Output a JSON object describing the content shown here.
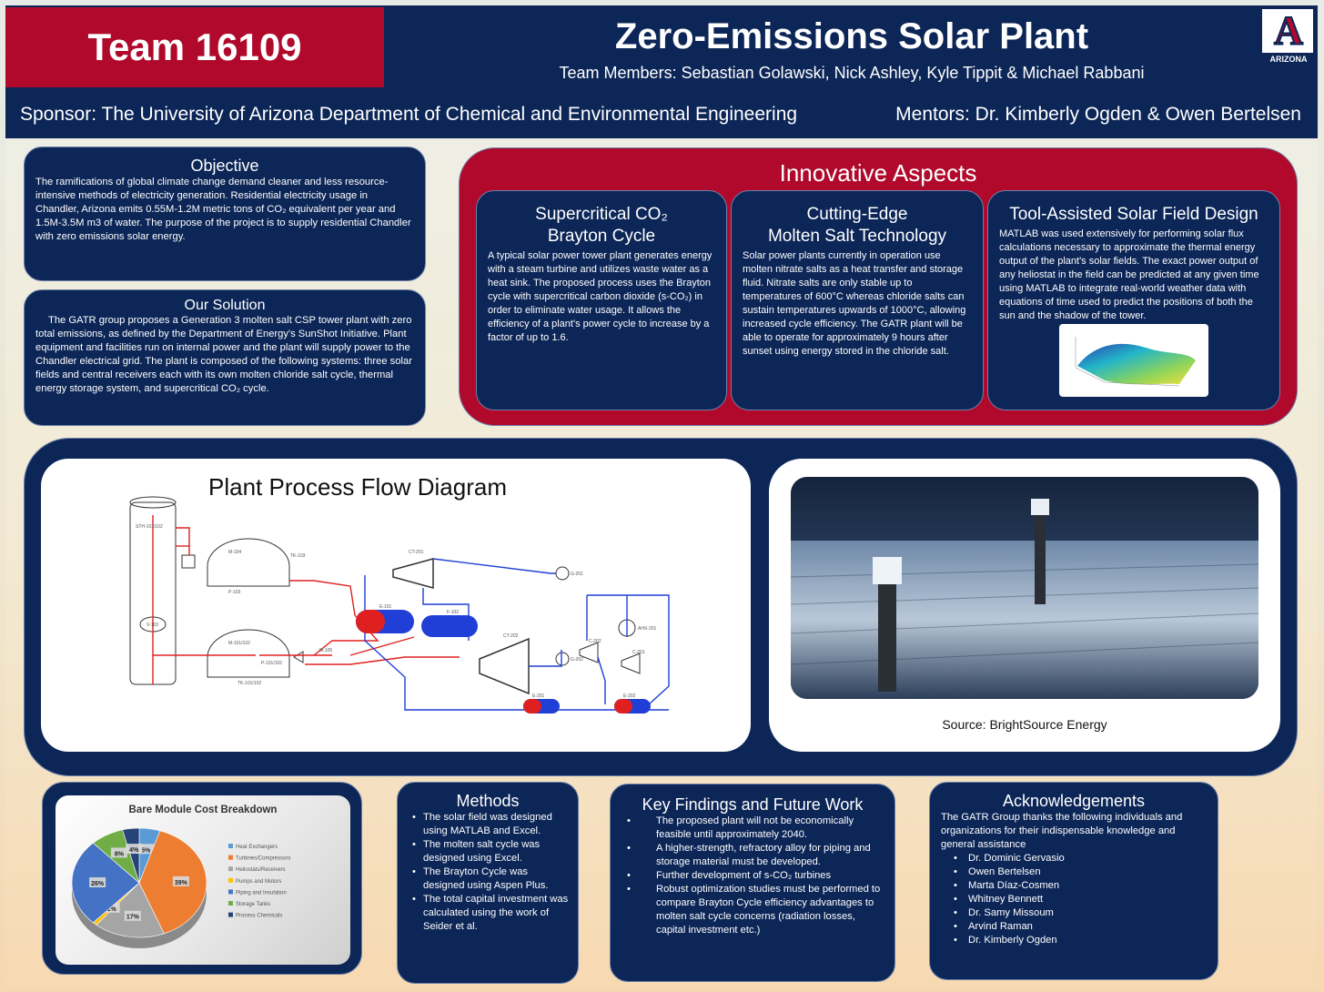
{
  "header": {
    "team": "Team 16109",
    "title": "Zero-Emissions Solar Plant",
    "members": "Team Members: Sebastian Golawski, Nick Ashley, Kyle Tippit & Michael Rabbani",
    "sponsor": "Sponsor: The University of Arizona Department of Chemical and Environmental Engineering",
    "mentors": "Mentors: Dr. Kimberly Ogden & Owen Bertelsen",
    "logo_text": "ARIZONA",
    "logo_letter": "A"
  },
  "objective": {
    "title": "Objective",
    "body": "The ramifications of global climate change demand cleaner and less resource-intensive methods of electricity generation. Residential electricity usage in Chandler, Arizona emits 0.55M-1.2M metric tons of CO₂ equivalent per year and 1.5M-3.5M m3 of water. The purpose of the project is to supply residential Chandler with zero emissions solar energy."
  },
  "solution": {
    "title": "Our Solution",
    "body": "The GATR group proposes a Generation 3 molten salt CSP tower plant with zero total emissions, as defined by the Department of Energy's SunShot Initiative. Plant equipment and facilities run on internal power and the plant will supply power to the Chandler electrical grid. The plant is composed of the following systems: three solar fields and central receivers each with its own molten chloride salt cycle, thermal energy storage system, and supercritical CO₂ cycle."
  },
  "innovative": {
    "title": "Innovative Aspects",
    "a1_title_l1": "Supercritical CO₂",
    "a1_title_l2": "Brayton Cycle",
    "a1_body": "A typical solar power tower plant generates energy with a steam turbine and utilizes waste water as a heat sink. The proposed process uses the Brayton cycle with supercritical carbon dioxide (s-CO₂) in order to eliminate water usage. It allows the efficiency of a plant's power cycle to increase by a factor of up to 1.6.",
    "a2_title_l1": "Cutting-Edge",
    "a2_title_l2": "Molten Salt Technology",
    "a2_body": "Solar power plants currently in operation use molten nitrate salts as a heat transfer and storage fluid. Nitrate salts are only stable up to temperatures of 600°C whereas chloride salts can sustain temperatures upwards of 1000°C, allowing increased cycle efficiency. The GATR plant will be able to operate for approximately 9 hours after sunset using energy stored in the chloride salt.",
    "a3_title": "Tool-Assisted Solar Field Design",
    "a3_body": "MATLAB was used extensively for performing solar flux calculations necessary to approximate the thermal energy output of the plant's solar fields. The exact power output of any heliostat in the field can be predicted at any given time using MATLAB to integrate real-world weather data with equations of time used to predict the positions of both the sun and the shadow of the tower."
  },
  "pfd": {
    "title": "Plant Process Flow Diagram",
    "labels": [
      "STH-101/102",
      "V-103",
      "M-104",
      "TK-103",
      "P-103",
      "M-101/102",
      "P-101/102",
      "TK-101/102",
      "M-105",
      "E-101",
      "F-102",
      "CT-201",
      "CT-202",
      "G-201",
      "G-202",
      "C-202",
      "C-201",
      "AHX-201",
      "E-201",
      "E-202"
    ]
  },
  "photo": {
    "source": "Source: BrightSource Energy"
  },
  "pie": {
    "title": "Bare Module Cost Breakdown",
    "legend": [
      "Heat Exchangers",
      "Turbines/Compressors",
      "Heliostats/Receivers",
      "Pumps and Motors",
      "Piping and Insulation",
      "Storage Tanks",
      "Process Chemicals"
    ],
    "values": [
      5,
      39,
      17,
      1,
      26,
      8,
      4
    ],
    "labels": [
      "5%",
      "39%",
      "17%",
      "1%",
      "26%",
      "8%",
      "4%"
    ],
    "colors": [
      "#5b9bd5",
      "#ed7d31",
      "#a5a5a5",
      "#ffc000",
      "#4472c4",
      "#70ad47",
      "#264478"
    ]
  },
  "methods": {
    "title": "Methods",
    "items": [
      "The solar field was designed using MATLAB and Excel.",
      "The molten salt cycle was designed using Excel.",
      "The Brayton Cycle was designed using Aspen Plus.",
      "The total capital investment was calculated using the work of Seider et al."
    ]
  },
  "findings": {
    "title": "Key Findings and Future Work",
    "items": [
      "The proposed plant will not be economically feasible until approximately 2040.",
      "A higher-strength, refractory alloy for piping and storage material must be developed.",
      "Further development of s-CO₂ turbines",
      "Robust optimization studies must be performed to compare Brayton Cycle efficiency advantages to molten salt cycle concerns (radiation losses, capital investment etc.)"
    ]
  },
  "ack": {
    "title": "Acknowledgements",
    "intro": "The GATR Group thanks the following individuals and organizations for their indispensable knowledge and general assistance",
    "names": [
      "Dr. Dominic Gervasio",
      "Owen Bertelsen",
      "Marta Díaz-Cosmen",
      "Whitney Bennett",
      "Dr. Samy Missoum",
      "Arvind Raman",
      "Dr. Kimberly Ogden"
    ]
  }
}
